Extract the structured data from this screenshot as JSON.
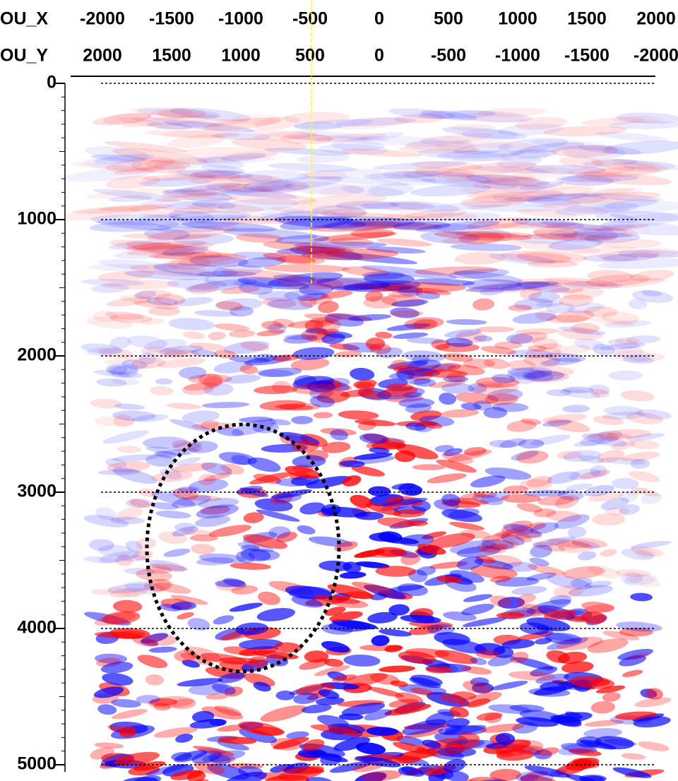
{
  "chart_data": {
    "type": "seismic",
    "x_header_rows": [
      {
        "label": "OU_X",
        "values": [
          -2000,
          -1500,
          -1000,
          -500,
          0,
          500,
          1000,
          1500,
          2000
        ]
      },
      {
        "label": "OU_Y",
        "values": [
          2000,
          1500,
          1000,
          500,
          0,
          -500,
          -1000,
          -1500,
          -2000
        ]
      }
    ],
    "ylim": [
      0,
      5000
    ],
    "yticks": [
      0,
      1000,
      2000,
      3000,
      4000,
      5000
    ],
    "grid": true
  }
}
